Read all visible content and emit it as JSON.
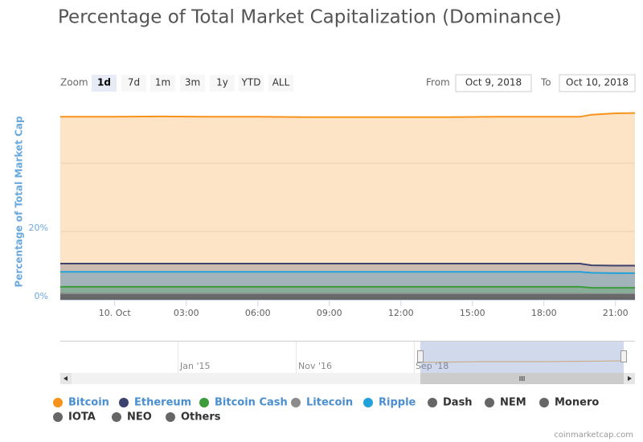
{
  "chart_data": {
    "type": "area",
    "title": "Percentage of Total Market Capitalization (Dominance)",
    "y_axis_label": "Percentage of Total Market Cap",
    "zoom_label": "Zoom",
    "zoom_buttons": [
      "1d",
      "7d",
      "1m",
      "3m",
      "1y",
      "YTD",
      "ALL"
    ],
    "selected_zoom": "1d",
    "from_label": "From",
    "from_value": "Oct 9, 2018",
    "to_label": "To",
    "to_value": "Oct 10, 2018",
    "x": [
      "2018-10-09 21:43",
      "2018-10-10 00:00",
      "2018-10-10 02:00",
      "2018-10-10 04:00",
      "2018-10-10 06:00",
      "2018-10-10 08:00",
      "2018-10-10 10:00",
      "2018-10-10 12:00",
      "2018-10-10 14:00",
      "2018-10-10 16:00",
      "2018-10-10 18:00",
      "2018-10-10 19:30",
      "2018-10-10 20:00",
      "2018-10-10 21:00",
      "2018-10-10 21:49"
    ],
    "xlim": [
      "2018-10-09 21:43",
      "2018-10-10 21:49"
    ],
    "xticks": [
      {
        "value": "2018-10-10 00:00",
        "label": "10. Oct"
      },
      {
        "value": "2018-10-10 03:00",
        "label": "03:00"
      },
      {
        "value": "2018-10-10 06:00",
        "label": "06:00"
      },
      {
        "value": "2018-10-10 09:00",
        "label": "09:00"
      },
      {
        "value": "2018-10-10 12:00",
        "label": "12:00"
      },
      {
        "value": "2018-10-10 15:00",
        "label": "15:00"
      },
      {
        "value": "2018-10-10 18:00",
        "label": "18:00"
      },
      {
        "value": "2018-10-10 21:00",
        "label": "21:00"
      }
    ],
    "ylim": [
      0,
      57.2
    ],
    "yticks": [
      {
        "value": 0,
        "label": "0%"
      },
      {
        "value": 20,
        "label": "20%"
      }
    ],
    "ygrid": [
      20,
      40
    ],
    "series": [
      {
        "name": "Bitcoin",
        "color": "#f7931a",
        "legend_color": "#4a8fcf",
        "values": [
          53.6,
          53.6,
          53.7,
          53.6,
          53.6,
          53.5,
          53.5,
          53.5,
          53.5,
          53.6,
          53.6,
          53.6,
          54.2,
          54.6,
          54.7
        ]
      },
      {
        "name": "Ethereum",
        "color": "#3d416e",
        "legend_color": "#4a8fcf",
        "values": [
          10.6,
          10.6,
          10.6,
          10.6,
          10.6,
          10.6,
          10.6,
          10.6,
          10.6,
          10.6,
          10.6,
          10.6,
          10.1,
          10.0,
          10.0
        ]
      },
      {
        "name": "Bitcoin Cash",
        "color": "#3c9b3a",
        "legend_color": "#4a8fcf",
        "values": [
          3.8,
          3.8,
          3.8,
          3.8,
          3.8,
          3.8,
          3.8,
          3.8,
          3.8,
          3.8,
          3.8,
          3.8,
          3.5,
          3.5,
          3.5
        ]
      },
      {
        "name": "Litecoin",
        "color": "#8c8c8c",
        "legend_color": "#4a8fcf",
        "values": [
          1.8,
          1.8,
          1.8,
          1.8,
          1.8,
          1.8,
          1.8,
          1.8,
          1.8,
          1.8,
          1.8,
          1.8,
          1.7,
          1.7,
          1.7
        ]
      },
      {
        "name": "Ripple",
        "color": "#23a1d9",
        "legend_color": "#4a8fcf",
        "values": [
          8.2,
          8.2,
          8.2,
          8.2,
          8.2,
          8.2,
          8.2,
          8.2,
          8.2,
          8.2,
          8.2,
          8.2,
          7.9,
          7.8,
          7.8
        ]
      },
      {
        "name": "Dash",
        "color": "#666666",
        "legend_color": "#333333",
        "values": [
          0.6,
          0.6,
          0.6,
          0.6,
          0.6,
          0.6,
          0.6,
          0.6,
          0.6,
          0.6,
          0.6,
          0.6,
          0.6,
          0.6,
          0.6
        ]
      },
      {
        "name": "NEM",
        "color": "#666666",
        "legend_color": "#333333",
        "values": [
          0.3,
          0.3,
          0.3,
          0.3,
          0.3,
          0.3,
          0.3,
          0.3,
          0.3,
          0.3,
          0.3,
          0.3,
          0.3,
          0.3,
          0.3
        ]
      },
      {
        "name": "Monero",
        "color": "#666666",
        "legend_color": "#333333",
        "values": [
          0.9,
          0.9,
          0.9,
          0.9,
          0.9,
          0.9,
          0.9,
          0.9,
          0.9,
          0.9,
          0.9,
          0.9,
          0.9,
          0.9,
          0.9
        ]
      },
      {
        "name": "IOTA",
        "color": "#666666",
        "legend_color": "#333333",
        "values": [
          0.6,
          0.6,
          0.6,
          0.6,
          0.6,
          0.6,
          0.6,
          0.6,
          0.6,
          0.6,
          0.6,
          0.6,
          0.6,
          0.6,
          0.6
        ]
      },
      {
        "name": "NEO",
        "color": "#666666",
        "legend_color": "#333333",
        "values": [
          0.4,
          0.4,
          0.4,
          0.4,
          0.4,
          0.4,
          0.4,
          0.4,
          0.4,
          0.4,
          0.4,
          0.4,
          0.4,
          0.4,
          0.4
        ]
      },
      {
        "name": "Others",
        "color": "#666666",
        "legend_color": "#333333",
        "values": [
          1.4,
          1.4,
          1.4,
          1.4,
          1.4,
          1.4,
          1.4,
          1.4,
          1.4,
          1.4,
          1.4,
          1.4,
          1.4,
          1.4,
          1.4
        ]
      }
    ],
    "navigator_labels": [
      "Jan '15",
      "Nov '16",
      "Sep '18"
    ],
    "credit": "coinmarketcap.com"
  }
}
